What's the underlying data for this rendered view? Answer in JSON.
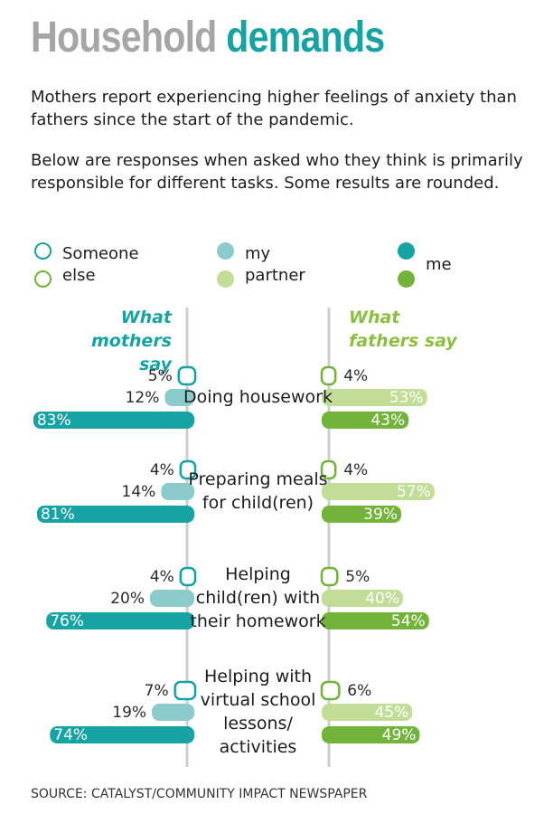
{
  "header": {
    "title_part1": "Household",
    "title_part2": "demands",
    "intro_1": "Mothers report experiencing higher feelings of anxiety than fathers since the start of the pandemic.",
    "intro_2": "Below are responses when asked who they think is primarily responsible for different tasks. Some results are rounded."
  },
  "colors": {
    "someone_else_mothers": "#ffffff",
    "my_partner_mothers": "#8ccbcb",
    "me_mothers": "#16a3a3",
    "someone_else_fathers": "#ffffff",
    "my_partner_fathers": "#c2dd97",
    "me_fathers": "#72b43a",
    "mothers_head": "#16a3a3",
    "fathers_head": "#8cbf3f",
    "divider": "#cfcfcf"
  },
  "legend": [
    {
      "key": "someone_else",
      "label": "Someone else"
    },
    {
      "key": "my_partner",
      "label": "my partner"
    },
    {
      "key": "me",
      "label": "me"
    }
  ],
  "chart_data": {
    "type": "bar",
    "orientation": "horizontal-diverging",
    "categories": [
      "Doing housework",
      "Preparing meals for child(ren)",
      "Helping child(ren) with their homework",
      "Helping with virtual school lessons/ activities"
    ],
    "left_title": "What mothers say",
    "right_title": "What fathers say",
    "series": [
      {
        "name": "Someone else",
        "side": "mothers",
        "values": [
          5,
          4,
          4,
          7
        ]
      },
      {
        "name": "my partner",
        "side": "mothers",
        "values": [
          12,
          14,
          20,
          19
        ]
      },
      {
        "name": "me",
        "side": "mothers",
        "values": [
          83,
          81,
          76,
          74
        ]
      },
      {
        "name": "Someone else",
        "side": "fathers",
        "values": [
          4,
          4,
          5,
          6
        ]
      },
      {
        "name": "my partner",
        "side": "fathers",
        "values": [
          53,
          57,
          40,
          45
        ]
      },
      {
        "name": "me",
        "side": "fathers",
        "values": [
          43,
          39,
          54,
          49
        ]
      }
    ],
    "value_suffix": "%",
    "xlim": [
      0,
      100
    ]
  },
  "source": "SOURCE: CATALYST/COMMUNITY IMPACT NEWSPAPER"
}
